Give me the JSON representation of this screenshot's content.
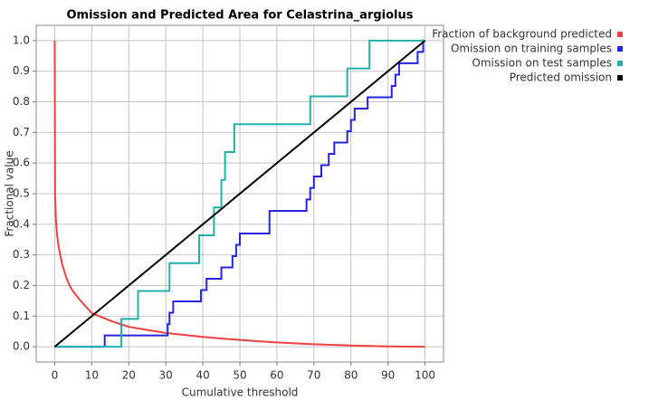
{
  "chart_data": {
    "type": "line",
    "title": "Omission and Predicted Area for Celastrina_argiolus",
    "x_label": "Cumulative threshold",
    "y_label": "Fractional value",
    "xlim": [
      -5,
      105
    ],
    "ylim": [
      -0.05,
      1.05
    ],
    "xticks": [
      0,
      10,
      20,
      30,
      40,
      50,
      60,
      70,
      80,
      90,
      100
    ],
    "yticks": [
      {
        "value": 0,
        "label": "0.0"
      },
      0.1,
      0.2,
      0.3,
      0.4,
      0.5,
      0.6,
      0.7,
      0.8,
      0.9,
      {
        "value": 1,
        "label": "1.0"
      }
    ],
    "grid": true,
    "legend": "upper right",
    "series": [
      {
        "name": "Fraction of background predicted",
        "color": "#f04040",
        "x": [
          0,
          0.1,
          0.3,
          0.6,
          1,
          1.5,
          2,
          3,
          4,
          5,
          7,
          10,
          15,
          20,
          30,
          40,
          50,
          60,
          70,
          80,
          90,
          100
        ],
        "values": [
          1,
          0.5,
          0.42,
          0.37,
          0.33,
          0.3,
          0.27,
          0.23,
          0.2,
          0.18,
          0.15,
          0.11,
          0.085,
          0.065,
          0.045,
          0.032,
          0.022,
          0.014,
          0.008,
          0.004,
          0.001,
          0
        ]
      },
      {
        "name": "Omission on training samples",
        "color": "#2424e0",
        "x": [
          0,
          13.5,
          13.5,
          30.5,
          30.5,
          31,
          31,
          32,
          32,
          39.5,
          39.5,
          41,
          41,
          45,
          45,
          48,
          48,
          49,
          49,
          50,
          50,
          58,
          58,
          68,
          68,
          69,
          69,
          70,
          70,
          72,
          72,
          74,
          74,
          75.5,
          75.5,
          79,
          79,
          80,
          80,
          81,
          81,
          84.5,
          84.5,
          91,
          91,
          92,
          92,
          93,
          93,
          98,
          98,
          99.5,
          99.5,
          100
        ],
        "values": [
          0,
          0,
          0.037,
          0.037,
          0.074,
          0.074,
          0.111,
          0.111,
          0.148,
          0.148,
          0.185,
          0.185,
          0.222,
          0.222,
          0.259,
          0.259,
          0.296,
          0.296,
          0.333,
          0.333,
          0.37,
          0.37,
          0.444,
          0.444,
          0.481,
          0.481,
          0.519,
          0.519,
          0.556,
          0.556,
          0.593,
          0.593,
          0.63,
          0.63,
          0.667,
          0.667,
          0.704,
          0.704,
          0.741,
          0.741,
          0.778,
          0.778,
          0.815,
          0.815,
          0.852,
          0.852,
          0.889,
          0.889,
          0.926,
          0.926,
          0.963,
          0.963,
          1,
          1
        ]
      },
      {
        "name": "Omission on test samples",
        "color": "#20b2aa",
        "x": [
          0,
          18,
          18,
          22.5,
          22.5,
          31,
          31,
          39,
          39,
          43,
          43,
          45,
          45,
          46,
          46,
          48.5,
          48.5,
          69,
          69,
          79,
          79,
          85,
          85,
          100
        ],
        "values": [
          0,
          0,
          0.091,
          0.091,
          0.182,
          0.182,
          0.273,
          0.273,
          0.364,
          0.364,
          0.455,
          0.455,
          0.545,
          0.545,
          0.636,
          0.636,
          0.727,
          0.727,
          0.818,
          0.818,
          0.909,
          0.909,
          1,
          1
        ]
      },
      {
        "name": "Predicted omission",
        "color": "#000000",
        "x": [
          0,
          100
        ],
        "values": [
          0,
          1
        ]
      }
    ]
  }
}
